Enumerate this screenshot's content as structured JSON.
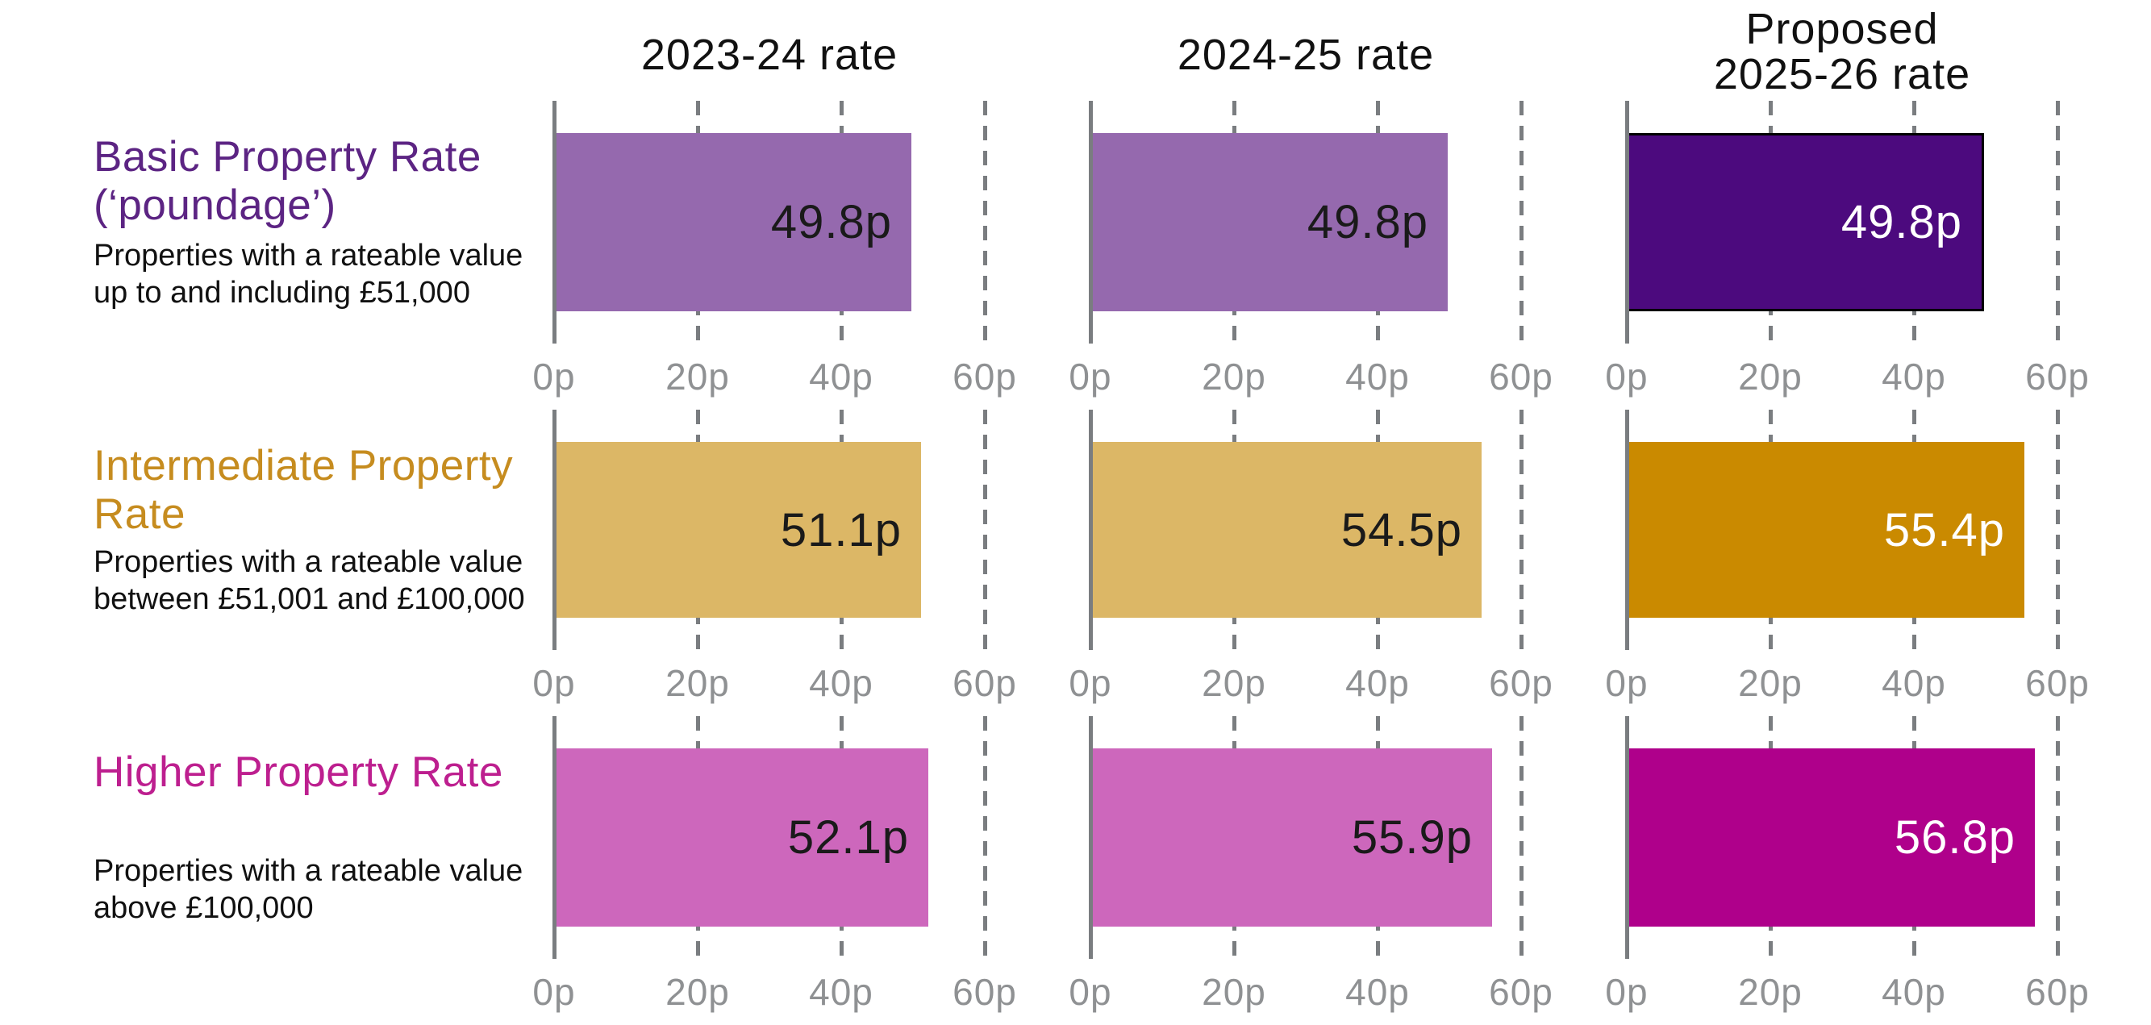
{
  "page": {
    "background": "#ffffff"
  },
  "chart_data": {
    "type": "bar",
    "orientation": "horizontal",
    "unit": "pence (p)",
    "title": "",
    "legend": "none",
    "grid": "dashed vertical gridlines at 20p intervals",
    "column_headers": [
      "2023-24 rate",
      "2024-25 rate",
      "Proposed\n2025-26 rate"
    ],
    "x_axis": {
      "min": 0,
      "max": 60,
      "ticks": [
        0,
        20,
        40,
        60
      ],
      "tick_labels": [
        "0p",
        "20p",
        "40p",
        "60p"
      ]
    },
    "rows": [
      {
        "title": "Basic Property Rate\n(‘poundage’)",
        "description": "Properties with a rateable value\nup to and including £51,000",
        "title_color": "#5C2483",
        "values": [
          49.8,
          49.8,
          49.8
        ],
        "value_labels": [
          "49.8p",
          "49.8p",
          "49.8p"
        ],
        "bar_colors": [
          "#9569AE",
          "#9569AE",
          "#4C0A7E"
        ],
        "value_label_colors": [
          "#1a1a1a",
          "#1a1a1a",
          "#ffffff"
        ],
        "proposed_bar_outlined": true
      },
      {
        "title": "Intermediate Property\nRate",
        "description": "Properties with a rateable value\nbetween £51,001 and £100,000",
        "title_color": "#C68C1F",
        "values": [
          51.1,
          54.5,
          55.4
        ],
        "value_labels": [
          "51.1p",
          "54.5p",
          "55.4p"
        ],
        "bar_colors": [
          "#DCB766",
          "#DCB766",
          "#CA8A00"
        ],
        "value_label_colors": [
          "#1a1a1a",
          "#1a1a1a",
          "#ffffff"
        ],
        "proposed_bar_outlined": false
      },
      {
        "title": "Higher Property Rate",
        "description": "Properties with a rateable value\nabove £100,000",
        "title_color": "#BD1F8F",
        "values": [
          52.1,
          55.9,
          56.8
        ],
        "value_labels": [
          "52.1p",
          "55.9p",
          "56.8p"
        ],
        "bar_colors": [
          "#CD67BC",
          "#CD67BC",
          "#AF008B"
        ],
        "value_label_colors": [
          "#1a1a1a",
          "#1a1a1a",
          "#ffffff"
        ],
        "proposed_bar_outlined": false
      }
    ],
    "colors": {
      "axis_line": "#7A7D80",
      "gridline": "#7A7D80",
      "tick_label": "#8F9193",
      "header_text": "#111111",
      "description_text": "#111111",
      "proposed_outline": "#000000"
    }
  }
}
